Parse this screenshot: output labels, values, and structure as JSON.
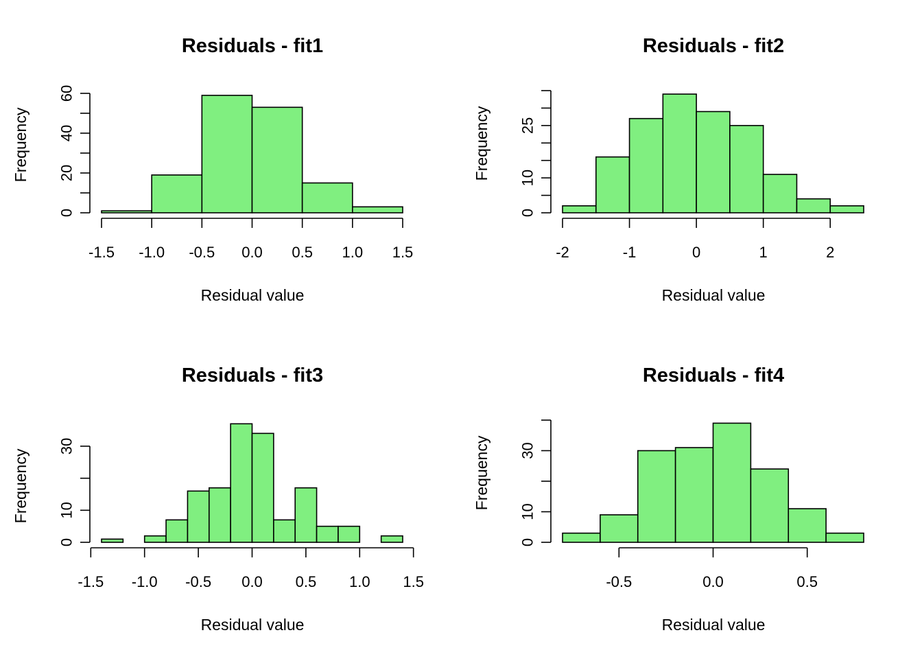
{
  "colors": {
    "bar_fill": "#80ef80",
    "stroke": "#000000",
    "background": "#ffffff"
  },
  "chart_data": [
    {
      "type": "bar",
      "title": "Residuals - fit1",
      "xlabel": "Residual value",
      "ylabel": "Frequency",
      "bin_edges": [
        -1.5,
        -1.0,
        -0.5,
        0.0,
        0.5,
        1.0,
        1.5
      ],
      "values": [
        1,
        19,
        59,
        53,
        15,
        3
      ],
      "xticks": [
        -1.5,
        -1.0,
        -0.5,
        0.0,
        0.5,
        1.0,
        1.5
      ],
      "xtick_labels": [
        "-1.5",
        "-1.0",
        "-0.5",
        "0.0",
        "0.5",
        "1.0",
        "1.5"
      ],
      "yticks": [
        0,
        10,
        20,
        30,
        40,
        50,
        60
      ],
      "ytick_labels": [
        "0",
        "",
        "20",
        "",
        "40",
        "",
        "60"
      ],
      "xlim": [
        -1.5,
        1.5
      ],
      "ylim": [
        0,
        60
      ]
    },
    {
      "type": "bar",
      "title": "Residuals - fit2",
      "xlabel": "Residual value",
      "ylabel": "Frequency",
      "bin_edges": [
        -2.0,
        -1.5,
        -1.0,
        -0.5,
        0.0,
        0.5,
        1.0,
        1.5,
        2.0,
        2.5
      ],
      "values": [
        2,
        16,
        27,
        34,
        29,
        25,
        11,
        4,
        2
      ],
      "xticks": [
        -2,
        -1,
        0,
        1,
        2
      ],
      "xtick_labels": [
        "-2",
        "-1",
        "0",
        "1",
        "2"
      ],
      "yticks": [
        0,
        5,
        10,
        15,
        20,
        25,
        30,
        35
      ],
      "ytick_labels": [
        "0",
        "",
        "10",
        "",
        "",
        "25",
        "",
        ""
      ],
      "xlim": [
        -2.0,
        2.5
      ],
      "ylim": [
        0,
        35
      ]
    },
    {
      "type": "bar",
      "title": "Residuals - fit3",
      "xlabel": "Residual value",
      "ylabel": "Frequency",
      "bin_edges": [
        -1.4,
        -1.2,
        -1.0,
        -0.8,
        -0.6,
        -0.4,
        -0.2,
        0.0,
        0.2,
        0.4,
        0.6,
        0.8,
        1.0,
        1.2,
        1.4
      ],
      "values": [
        1,
        0,
        2,
        7,
        16,
        17,
        37,
        34,
        7,
        17,
        5,
        5,
        0,
        2
      ],
      "xticks": [
        -1.5,
        -1.0,
        -0.5,
        0.0,
        0.5,
        1.0,
        1.5
      ],
      "xtick_labels": [
        "-1.5",
        "-1.0",
        "-0.5",
        "0.0",
        "0.5",
        "1.0",
        "1.5"
      ],
      "yticks": [
        0,
        10,
        20,
        30
      ],
      "ytick_labels": [
        "0",
        "10",
        "",
        "30"
      ],
      "xlim": [
        -1.5,
        1.5
      ],
      "ylim": [
        0,
        30
      ]
    },
    {
      "type": "bar",
      "title": "Residuals - fit4",
      "xlabel": "Residual value",
      "ylabel": "Frequency",
      "bin_edges": [
        -0.8,
        -0.6,
        -0.4,
        -0.2,
        0.0,
        0.2,
        0.4,
        0.6,
        0.8
      ],
      "values": [
        3,
        9,
        30,
        31,
        39,
        24,
        11,
        3
      ],
      "xticks": [
        -0.5,
        0.0,
        0.5
      ],
      "xtick_labels": [
        "-0.5",
        "0.0",
        "0.5"
      ],
      "yticks": [
        0,
        10,
        20,
        30,
        40
      ],
      "ytick_labels": [
        "0",
        "10",
        "",
        "30",
        ""
      ],
      "xlim": [
        -0.8,
        0.8
      ],
      "ylim": [
        0,
        40
      ]
    }
  ]
}
